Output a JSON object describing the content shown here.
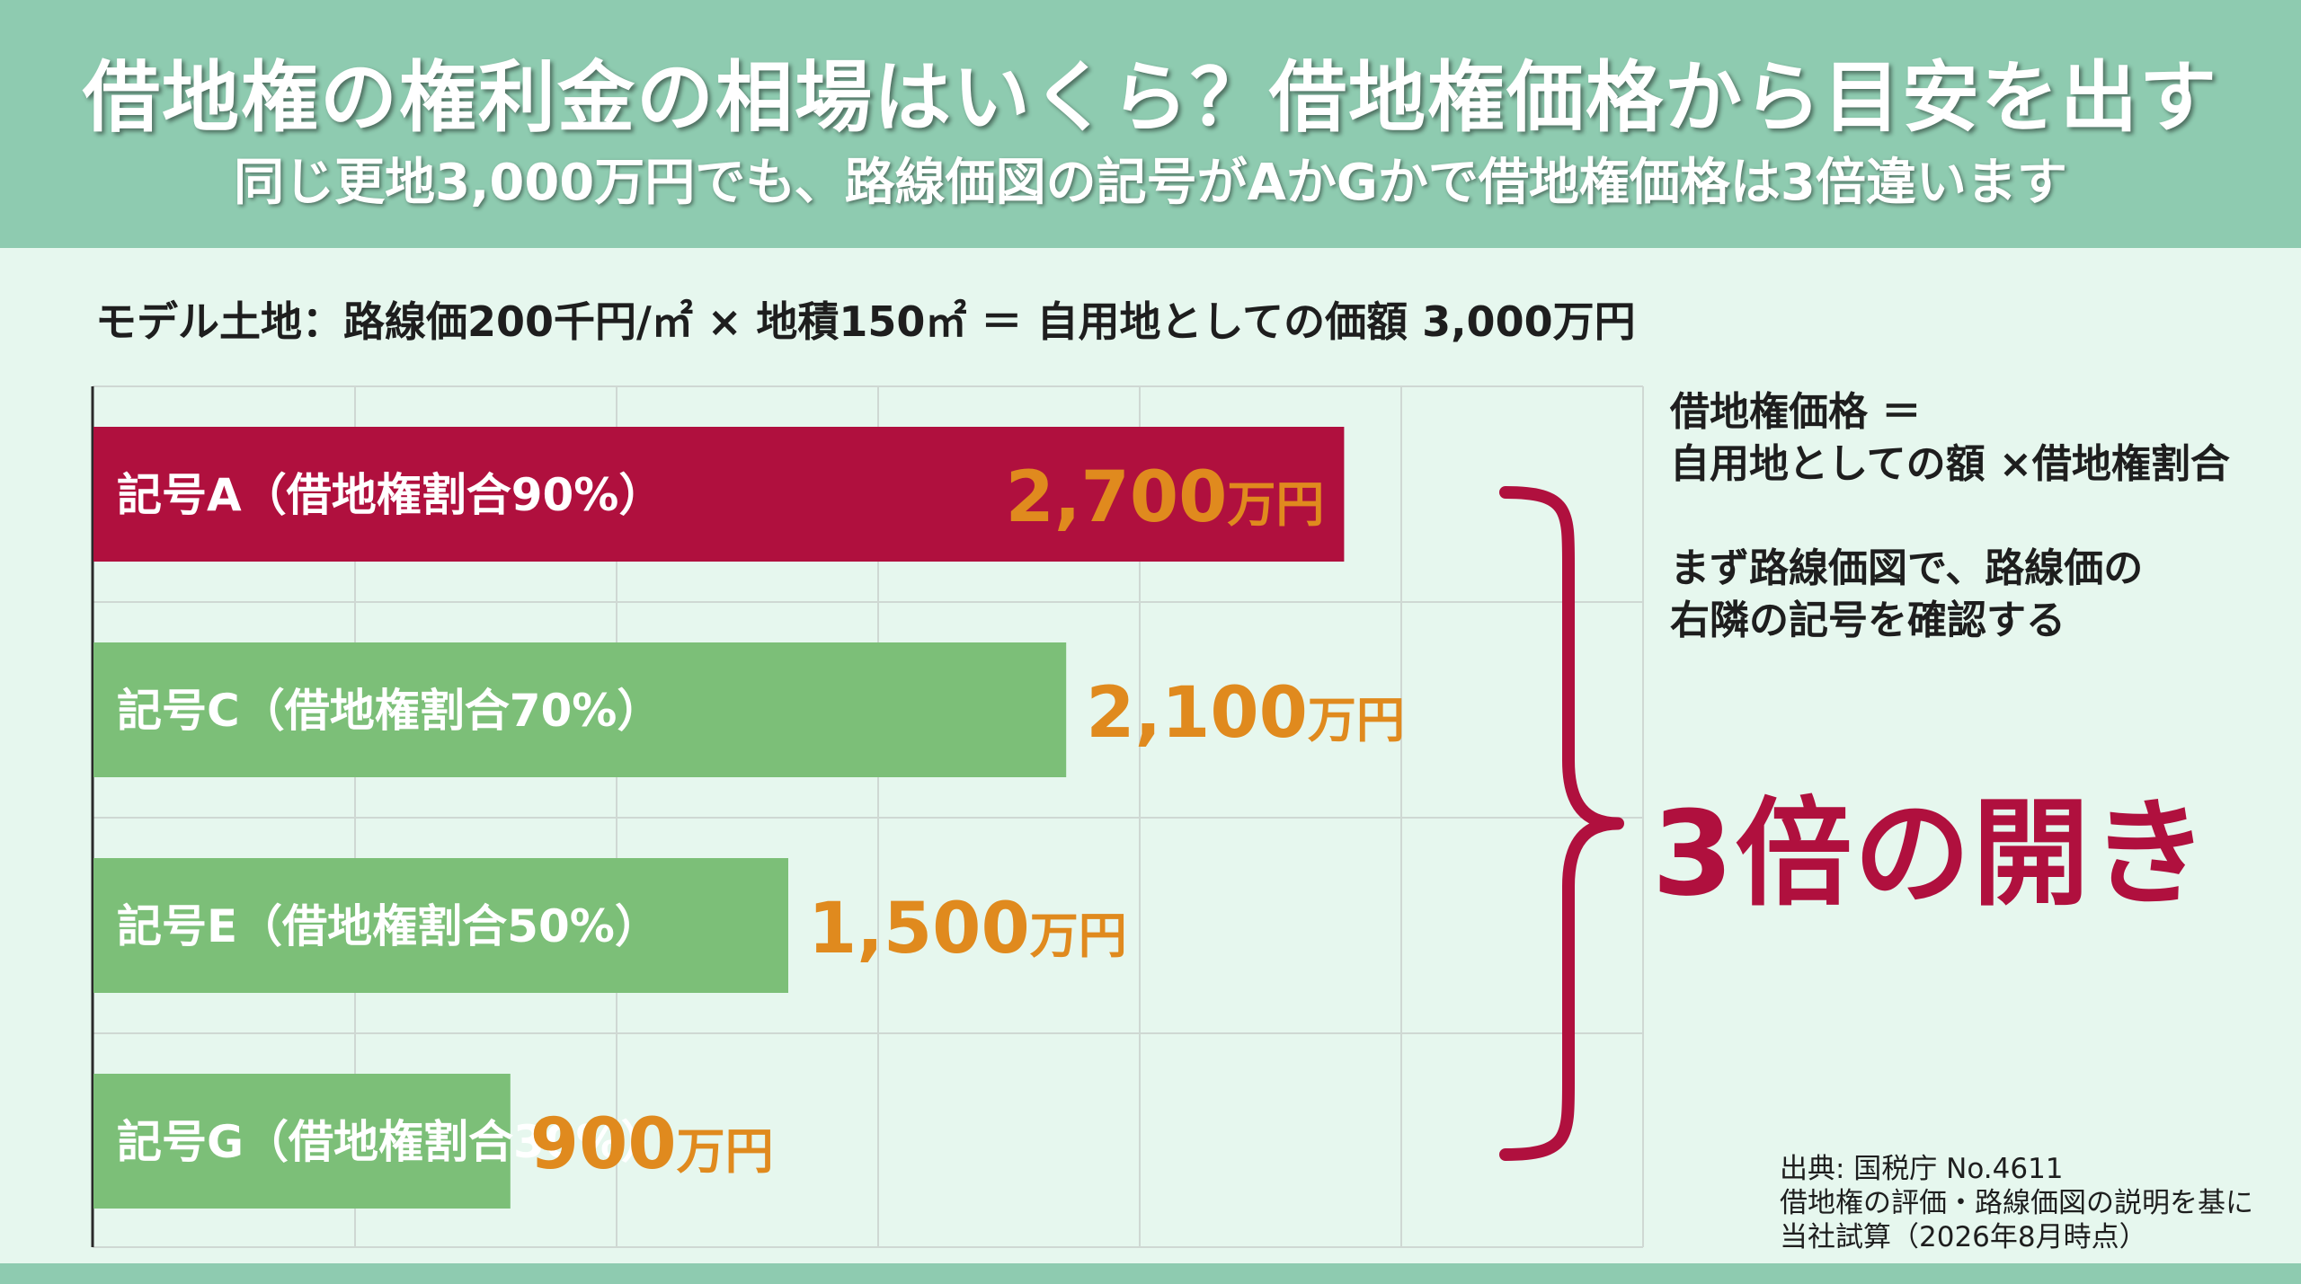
{
  "header": {
    "title": "借地権の権利金の相場はいくら？借地権価格から目安を出す",
    "subtitle": "同じ更地3,000万円でも、路線価図の記号がAかGかで借地権価格は3倍違います"
  },
  "model_line": "モデル土地：路線価200千円/㎡ × 地積150㎡ ＝ 自用地としての価額 3,000万円",
  "formula": {
    "line1": "借地権価格 ＝",
    "line2": "自用地としての額 ×借地権割合"
  },
  "step": {
    "line1": "まず路線価図で、路線価の",
    "line2": "右隣の記号を確認する"
  },
  "gap_label": "3倍の開き",
  "source": {
    "line1": "出典: 国税庁 No.4611",
    "line2": "借地権の評価・路線価図の説明を基に",
    "line3": "当社試算（2026年8月時点）"
  },
  "colors": {
    "header_bg": "#8ecbb0",
    "highlight_bar": "#b0103e",
    "bar": "#7cbf78",
    "value_text": "#e08a1e",
    "brace": "#b0103e",
    "grid": "#cfd8d3"
  },
  "chart_data": {
    "type": "bar",
    "orientation": "horizontal",
    "categories": [
      "記号A（借地権割合90%）",
      "記号C（借地権割合70%）",
      "記号E（借地権割合50%）",
      "記号G（借地権割合30%）"
    ],
    "series": [
      {
        "values": [
          2700,
          2100,
          1500,
          900
        ]
      }
    ],
    "value_labels": [
      {
        "number": "2,700",
        "unit": "万円"
      },
      {
        "number": "2,100",
        "unit": "万円"
      },
      {
        "number": "1,500",
        "unit": "万円"
      },
      {
        "number": "900",
        "unit": "万円"
      }
    ],
    "highlight_index": 0,
    "xlim": [
      0,
      3000
    ],
    "grid": true,
    "legend": "none",
    "title": "",
    "xlabel": "",
    "ylabel": ""
  }
}
